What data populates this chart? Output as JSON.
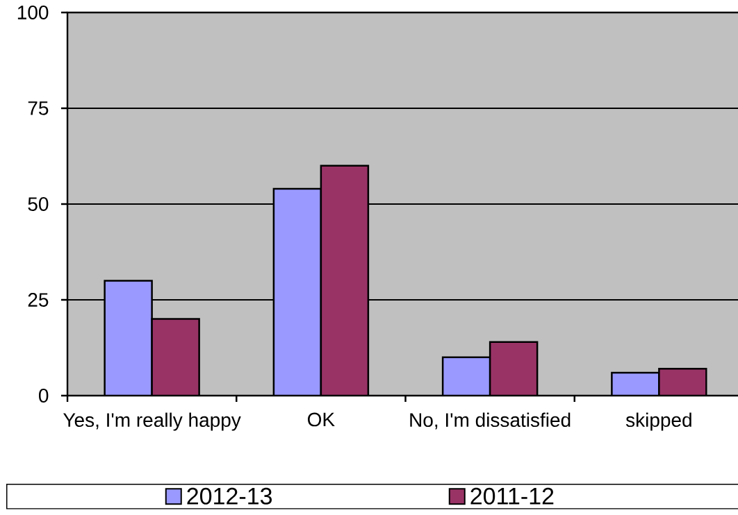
{
  "chart_data": {
    "type": "bar",
    "categories": [
      "Yes, I'm really happy",
      "OK",
      "No, I'm dissatisfied",
      "skipped"
    ],
    "series": [
      {
        "name": "2012-13",
        "color": "#9999ff",
        "values": [
          30,
          54,
          10,
          6
        ]
      },
      {
        "name": "2011-12",
        "color": "#993366",
        "values": [
          20,
          60,
          14,
          7
        ]
      }
    ],
    "ylim": [
      0,
      100
    ],
    "yticks": [
      0,
      25,
      50,
      75,
      100
    ],
    "grid": "y",
    "legend": "bottom"
  }
}
